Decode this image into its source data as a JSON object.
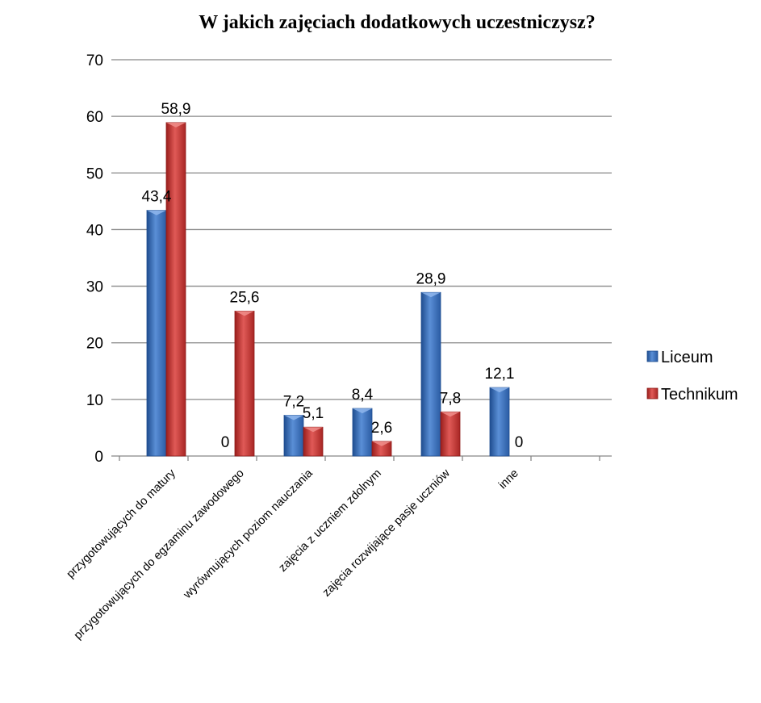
{
  "chart_data": {
    "type": "bar",
    "title": "W jakich zajęciach dodatkowych uczestniczysz?",
    "xlabel": "",
    "ylabel": "",
    "ylim": [
      0,
      70
    ],
    "yticks": [
      0,
      10,
      20,
      30,
      40,
      50,
      60,
      70
    ],
    "grid": true,
    "legend_position": "right",
    "categories": [
      "przygotowujących do matury",
      "przygotowujących do egzaminu zawodowego",
      "wyrównujących poziom nauczania",
      "zajęcia z uczniem zdolnym",
      "zajęcia rozwijające pasje uczniów",
      "inne"
    ],
    "series": [
      {
        "name": "Liceum",
        "color": "#3E6FB8",
        "values": [
          43.4,
          0,
          7.2,
          8.4,
          28.9,
          12.1
        ],
        "labels": [
          "43,4",
          "0",
          "7,2",
          "8,4",
          "28,9",
          "12,1"
        ]
      },
      {
        "name": "Technikum",
        "color": "#C8302E",
        "values": [
          58.9,
          25.6,
          5.1,
          2.6,
          7.8,
          0
        ],
        "labels": [
          "58,9",
          "25,6",
          "5,1",
          "2,6",
          "7,8",
          "0"
        ]
      }
    ]
  }
}
